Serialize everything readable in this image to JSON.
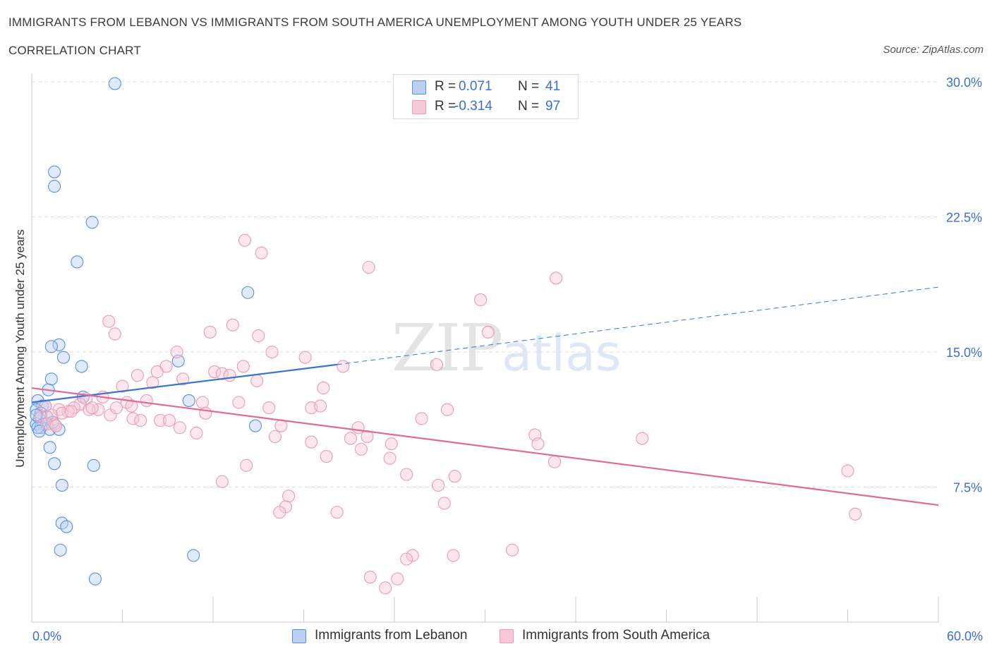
{
  "title": "IMMIGRANTS FROM LEBANON VS IMMIGRANTS FROM SOUTH AMERICA UNEMPLOYMENT AMONG YOUTH UNDER 25 YEARS",
  "subtitle": "CORRELATION CHART",
  "source": "Source: ZipAtlas.com",
  "watermark": {
    "zip": "ZIP",
    "atlas": "atlas"
  },
  "legend": {
    "rows": [
      {
        "r_label": "R =",
        "r_value": "0.071",
        "n_label": "N =",
        "n_value": "41"
      },
      {
        "r_label": "R =",
        "r_value": "-0.314",
        "n_label": "N =",
        "n_value": "97"
      }
    ]
  },
  "colors": {
    "lebanon": "#5b8fe0",
    "lebanon_fill": "#b9d0f3",
    "lebanon_line": "#3a75d4",
    "south_america": "#ec9ab5",
    "south_america_fill": "#f6c9d8",
    "south_america_line": "#e2689a",
    "axis_text": "#3b6fce",
    "grid": "#dddddd"
  },
  "chart_data": {
    "type": "scatter",
    "title": "IMMIGRANTS FROM LEBANON VS IMMIGRANTS FROM SOUTH AMERICA UNEMPLOYMENT AMONG YOUTH UNDER 25 YEARS",
    "xlabel": "",
    "ylabel": "Unemployment Among Youth under 25 years",
    "xlim": [
      0,
      60
    ],
    "ylim": [
      0,
      30
    ],
    "x_tick_labels": [
      "0.0%",
      "60.0%"
    ],
    "y_ticks": [
      7.5,
      15.0,
      22.5,
      30.0
    ],
    "y_tick_labels": [
      "7.5%",
      "15.0%",
      "22.5%",
      "30.0%"
    ],
    "grid": true,
    "series": [
      {
        "name": "Immigrants from Lebanon",
        "R": 0.071,
        "N": 41,
        "trend": {
          "x0": 0,
          "y0": 12.2,
          "x1": 20.2,
          "y1": 14.3,
          "dashed_to_x": 60,
          "dashed_to_y": 18.6
        },
        "points": [
          [
            5.5,
            29.9
          ],
          [
            1.5,
            25.0
          ],
          [
            1.5,
            24.2
          ],
          [
            4.0,
            22.2
          ],
          [
            3.0,
            20.0
          ],
          [
            14.3,
            18.3
          ],
          [
            1.8,
            15.4
          ],
          [
            1.3,
            15.3
          ],
          [
            2.1,
            14.7
          ],
          [
            3.3,
            14.2
          ],
          [
            9.7,
            14.5
          ],
          [
            1.3,
            13.5
          ],
          [
            1.1,
            12.9
          ],
          [
            3.4,
            12.5
          ],
          [
            0.4,
            12.3
          ],
          [
            0.7,
            12.0
          ],
          [
            0.9,
            12.0
          ],
          [
            0.3,
            11.8
          ],
          [
            10.4,
            12.3
          ],
          [
            0.6,
            11.6
          ],
          [
            0.5,
            11.3
          ],
          [
            1.0,
            11.4
          ],
          [
            0.8,
            11.0
          ],
          [
            0.3,
            11.0
          ],
          [
            0.6,
            10.8
          ],
          [
            0.4,
            10.8
          ],
          [
            1.2,
            10.7
          ],
          [
            1.8,
            10.7
          ],
          [
            0.5,
            10.6
          ],
          [
            14.8,
            10.9
          ],
          [
            1.2,
            9.7
          ],
          [
            1.5,
            8.8
          ],
          [
            4.1,
            8.7
          ],
          [
            2.0,
            7.6
          ],
          [
            2.0,
            5.5
          ],
          [
            2.3,
            5.3
          ],
          [
            1.9,
            4.0
          ],
          [
            10.7,
            3.7
          ],
          [
            4.2,
            2.4
          ],
          [
            0.3,
            11.5
          ],
          [
            1.4,
            11.1
          ]
        ]
      },
      {
        "name": "Immigrants from South America",
        "R": -0.314,
        "N": 97,
        "trend": {
          "x0": 0,
          "y0": 13.0,
          "x1": 60,
          "y1": 6.5
        },
        "points": [
          [
            14.1,
            21.2
          ],
          [
            15.2,
            20.5
          ],
          [
            22.3,
            19.7
          ],
          [
            34.7,
            19.1
          ],
          [
            29.7,
            17.9
          ],
          [
            5.1,
            16.7
          ],
          [
            5.5,
            16.0
          ],
          [
            13.3,
            16.5
          ],
          [
            11.8,
            16.1
          ],
          [
            15.0,
            15.9
          ],
          [
            30.2,
            16.1
          ],
          [
            9.6,
            15.0
          ],
          [
            15.9,
            15.0
          ],
          [
            18.1,
            14.7
          ],
          [
            8.9,
            14.2
          ],
          [
            20.6,
            14.2
          ],
          [
            26.8,
            14.3
          ],
          [
            14.0,
            14.2
          ],
          [
            8.3,
            13.9
          ],
          [
            12.1,
            13.9
          ],
          [
            12.6,
            13.8
          ],
          [
            7.0,
            13.7
          ],
          [
            10.0,
            13.5
          ],
          [
            13.1,
            13.7
          ],
          [
            8.0,
            13.3
          ],
          [
            6.0,
            13.1
          ],
          [
            14.9,
            13.4
          ],
          [
            19.3,
            13.0
          ],
          [
            4.7,
            12.5
          ],
          [
            3.6,
            12.4
          ],
          [
            6.3,
            12.2
          ],
          [
            7.6,
            12.3
          ],
          [
            11.3,
            12.2
          ],
          [
            6.6,
            12.0
          ],
          [
            3.2,
            12.1
          ],
          [
            2.8,
            11.9
          ],
          [
            4.4,
            11.8
          ],
          [
            13.7,
            12.2
          ],
          [
            15.7,
            11.9
          ],
          [
            18.5,
            11.9
          ],
          [
            19.1,
            12.0
          ],
          [
            27.5,
            11.8
          ],
          [
            2.4,
            11.7
          ],
          [
            1.8,
            11.8
          ],
          [
            11.5,
            11.6
          ],
          [
            3.8,
            11.8
          ],
          [
            2.0,
            11.6
          ],
          [
            1.3,
            11.5
          ],
          [
            5.2,
            11.5
          ],
          [
            6.7,
            11.3
          ],
          [
            7.2,
            11.2
          ],
          [
            8.5,
            11.2
          ],
          [
            9.1,
            11.2
          ],
          [
            1.5,
            11.0
          ],
          [
            25.8,
            11.3
          ],
          [
            9.8,
            10.8
          ],
          [
            16.5,
            10.9
          ],
          [
            21.6,
            10.8
          ],
          [
            10.9,
            10.5
          ],
          [
            16.1,
            10.3
          ],
          [
            21.1,
            10.2
          ],
          [
            33.3,
            10.4
          ],
          [
            22.2,
            10.3
          ],
          [
            40.4,
            10.2
          ],
          [
            18.5,
            10.0
          ],
          [
            23.8,
            9.9
          ],
          [
            33.5,
            9.9
          ],
          [
            21.8,
            9.6
          ],
          [
            19.5,
            9.2
          ],
          [
            23.7,
            9.1
          ],
          [
            34.6,
            8.9
          ],
          [
            14.2,
            8.7
          ],
          [
            24.8,
            8.2
          ],
          [
            28.0,
            8.1
          ],
          [
            54.0,
            8.4
          ],
          [
            12.6,
            7.8
          ],
          [
            26.9,
            7.6
          ],
          [
            17.0,
            7.0
          ],
          [
            27.3,
            6.6
          ],
          [
            16.8,
            6.4
          ],
          [
            16.4,
            6.1
          ],
          [
            20.2,
            6.1
          ],
          [
            54.5,
            6.0
          ],
          [
            31.8,
            4.0
          ],
          [
            25.2,
            3.7
          ],
          [
            27.9,
            3.7
          ],
          [
            24.8,
            3.5
          ],
          [
            22.4,
            2.5
          ],
          [
            24.2,
            2.4
          ],
          [
            23.4,
            1.9
          ],
          [
            0.6,
            11.4
          ],
          [
            1.0,
            11.0
          ],
          [
            1.6,
            10.9
          ],
          [
            2.6,
            11.7
          ],
          [
            0.9,
            12.0
          ],
          [
            5.6,
            11.9
          ],
          [
            4.0,
            11.9
          ]
        ]
      }
    ]
  }
}
